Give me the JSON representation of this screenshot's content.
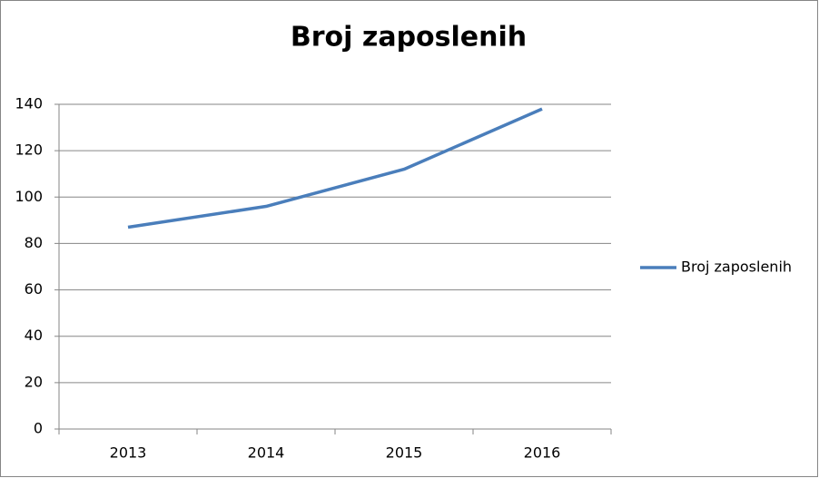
{
  "chart_data": {
    "type": "line",
    "title": "Broj zaposlenih",
    "categories": [
      "2013",
      "2014",
      "2015",
      "2016"
    ],
    "series": [
      {
        "name": "Broj zaposlenih",
        "color": "#4a7ebb",
        "values": [
          87,
          96,
          112,
          138
        ]
      }
    ],
    "ylim": [
      0,
      140
    ],
    "yticks": [
      0,
      20,
      40,
      60,
      80,
      100,
      120,
      140
    ],
    "grid": true,
    "legend": "right"
  }
}
